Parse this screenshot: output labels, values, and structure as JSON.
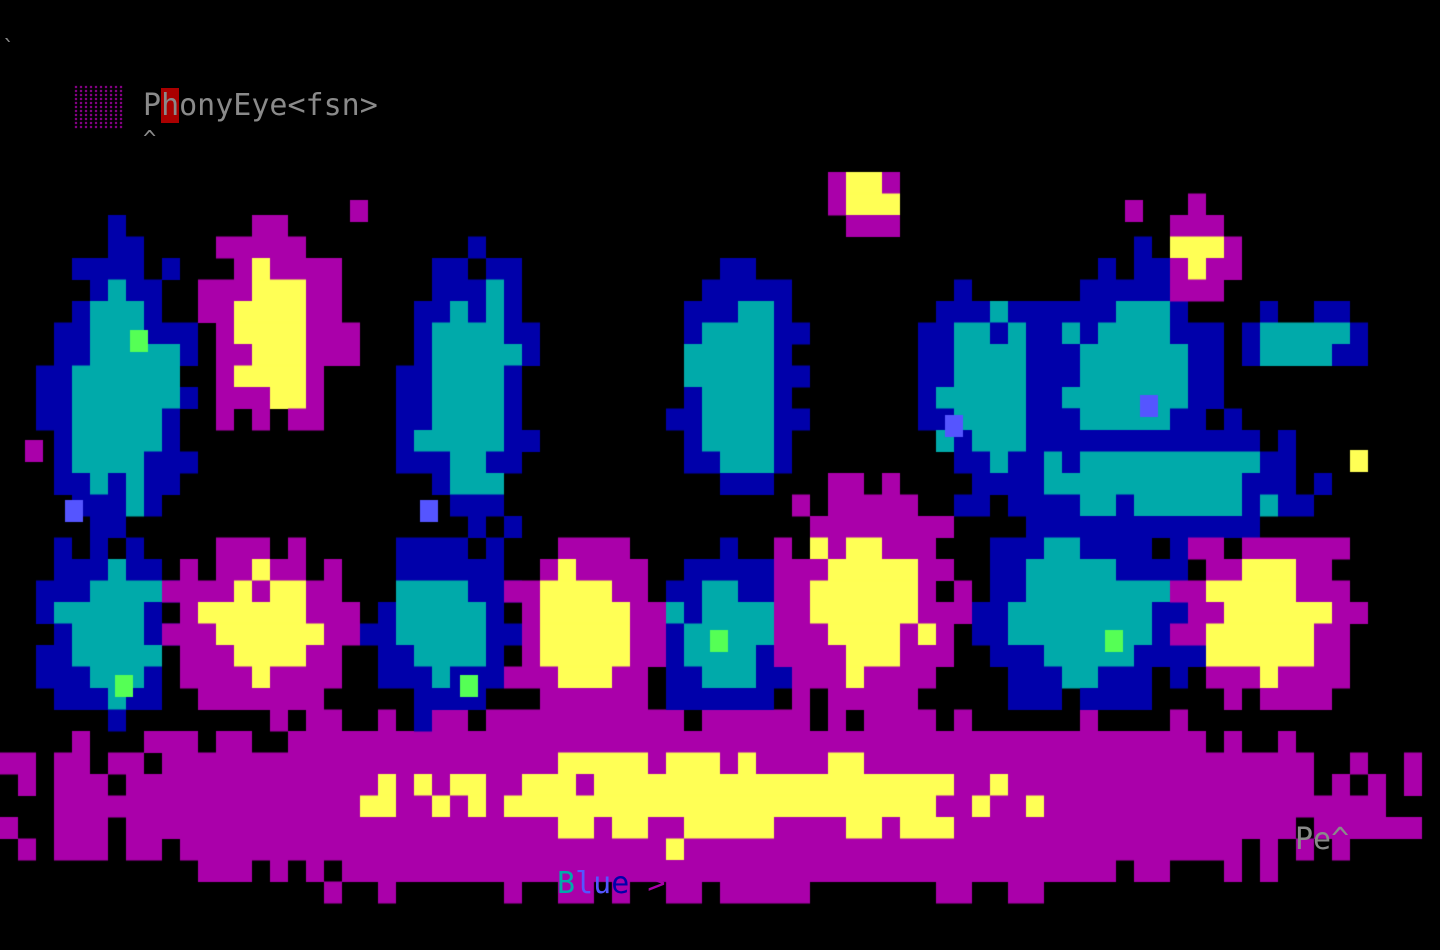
{
  "tick": "`",
  "signature": {
    "first_char": "P",
    "highlighted_char": "h",
    "rest": "onyEye<fsn>",
    "caret": "^"
  },
  "footer": {
    "label_parts": [
      {
        "text": "B",
        "color": "#00aaaa"
      },
      {
        "text": "lu",
        "color": "#5555ff"
      },
      {
        "text": "e",
        "color": "#0000aa"
      }
    ],
    "arrows": ">>>",
    "arrows_color": "#aa00aa"
  },
  "corner_tag": "Pe^",
  "palette": {
    "magenta": "#aa00aa",
    "yellow": "#ffff55",
    "blue": "#0000aa",
    "light_blue": "#5555ff",
    "cyan": "#00aaaa",
    "green": "#55ff55",
    "grey": "#8a8a8a",
    "red": "#aa0000"
  }
}
